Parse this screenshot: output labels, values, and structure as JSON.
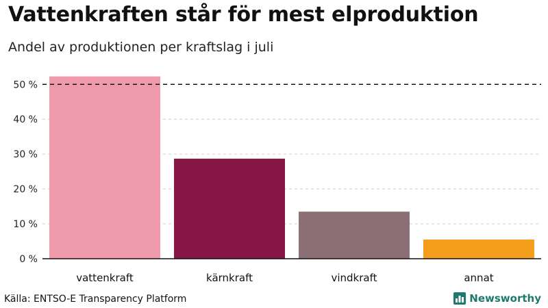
{
  "title": "Vattenkraften står för mest elproduktion",
  "subtitle": "Andel av produktionen per kraftslag i juli",
  "source": "Källa: ENTSO-E Transparency Platform",
  "brand": {
    "name": "Newsworthy",
    "color": "#1f7a6d",
    "icon": "bar-chart-logo-icon"
  },
  "chart_data": {
    "type": "bar",
    "categories": [
      "vattenkraft",
      "kärnkraft",
      "vindkraft",
      "annat"
    ],
    "values": [
      52.3,
      28.7,
      13.5,
      5.5
    ],
    "colors": [
      "#ef9aaa",
      "#871747",
      "#8b6f75",
      "#f59e1c"
    ],
    "ylim": [
      0,
      53
    ],
    "yticks": [
      0,
      10,
      20,
      30,
      40,
      50
    ],
    "ytick_labels": [
      "0 %",
      "10 %",
      "20 %",
      "30 %",
      "40 %",
      "50 %"
    ],
    "reference_line": {
      "value": 50,
      "style": "dashed",
      "color": "#111111"
    },
    "grid": true,
    "grid_style": "dashed",
    "xlabel": "",
    "ylabel": ""
  }
}
